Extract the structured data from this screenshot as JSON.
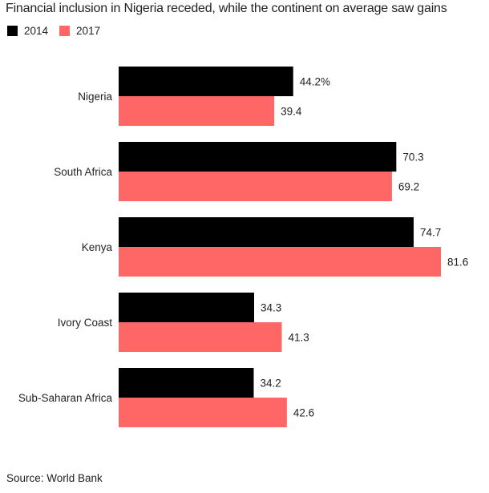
{
  "chart_data": {
    "type": "bar",
    "orientation": "horizontal",
    "title": "Financial inclusion in Nigeria receded, while the continent on average saw gains",
    "categories": [
      "Nigeria",
      "South Africa",
      "Kenya",
      "Ivory Coast",
      "Sub-Saharan Africa"
    ],
    "series": [
      {
        "name": "2014",
        "color": "#000000",
        "values": [
          44.2,
          70.3,
          74.7,
          34.3,
          34.2
        ],
        "labels": [
          "44.2%",
          "70.3",
          "74.7",
          "34.3",
          "34.2"
        ]
      },
      {
        "name": "2017",
        "color": "#ff6666",
        "values": [
          39.4,
          69.2,
          81.6,
          41.3,
          42.6
        ],
        "labels": [
          "39.4",
          "69.2",
          "81.6",
          "41.3",
          "42.6"
        ]
      }
    ],
    "xlabel": "",
    "ylabel": "",
    "xlim": [
      0,
      81.6
    ],
    "grid": false,
    "legend_position": "top-left",
    "source": "Source: World Bank"
  }
}
